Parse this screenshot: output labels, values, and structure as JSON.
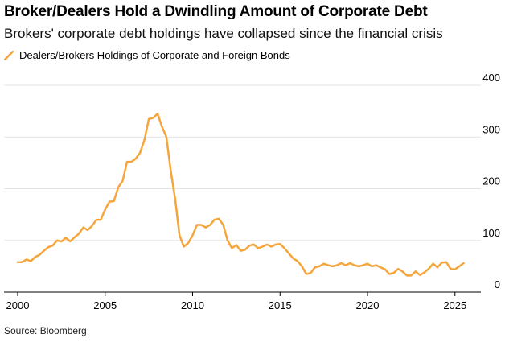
{
  "title": "Broker/Dealers Hold a Dwindling Amount of Corporate Debt",
  "subtitle": "Brokers' corporate debt holdings have collapsed since the financial crisis",
  "legend": {
    "label": "Dealers/Brokers Holdings of Corporate and Foreign Bonds"
  },
  "source": "Source: Bloomberg",
  "colors": {
    "series": "#f5a53b",
    "grid": "#e3e3e3",
    "axis": "#000000"
  },
  "chart_data": {
    "type": "line",
    "title": "Broker/Dealers Hold a Dwindling Amount of Corporate Debt",
    "xlabel": "",
    "ylabel": "",
    "xlim": [
      2000,
      2025.7
    ],
    "ylim": [
      0,
      400
    ],
    "x_ticks": [
      2000,
      2005,
      2010,
      2015,
      2020,
      2025
    ],
    "y_ticks": [
      0,
      100,
      200,
      300,
      400
    ],
    "x_tick_labels": [
      "2000",
      "2005",
      "2010",
      "2015",
      "2020",
      "2025"
    ],
    "y_tick_labels": [
      "0",
      "100",
      "200",
      "300",
      "400"
    ],
    "series": [
      {
        "name": "Dealers/Brokers Holdings of Corporate and Foreign Bonds",
        "x": [
          2000.0,
          2000.25,
          2000.5,
          2000.75,
          2001.0,
          2001.25,
          2001.5,
          2001.75,
          2002.0,
          2002.25,
          2002.5,
          2002.75,
          2003.0,
          2003.25,
          2003.5,
          2003.75,
          2004.0,
          2004.25,
          2004.5,
          2004.75,
          2005.0,
          2005.25,
          2005.5,
          2005.75,
          2006.0,
          2006.25,
          2006.5,
          2006.75,
          2007.0,
          2007.25,
          2007.5,
          2007.75,
          2008.0,
          2008.25,
          2008.5,
          2008.75,
          2009.0,
          2009.25,
          2009.5,
          2009.75,
          2010.0,
          2010.25,
          2010.5,
          2010.75,
          2011.0,
          2011.25,
          2011.5,
          2011.75,
          2012.0,
          2012.25,
          2012.5,
          2012.75,
          2013.0,
          2013.25,
          2013.5,
          2013.75,
          2014.0,
          2014.25,
          2014.5,
          2014.75,
          2015.0,
          2015.25,
          2015.5,
          2015.75,
          2016.0,
          2016.25,
          2016.5,
          2016.75,
          2017.0,
          2017.25,
          2017.5,
          2017.75,
          2018.0,
          2018.25,
          2018.5,
          2018.75,
          2019.0,
          2019.25,
          2019.5,
          2019.75,
          2020.0,
          2020.25,
          2020.5,
          2020.75,
          2021.0,
          2021.25,
          2021.5,
          2021.75,
          2022.0,
          2022.25,
          2022.5,
          2022.75,
          2023.0,
          2023.25,
          2023.5,
          2023.75,
          2024.0,
          2024.25,
          2024.5,
          2024.75,
          2025.0,
          2025.25,
          2025.5
        ],
        "values": [
          58,
          58,
          63,
          60,
          68,
          72,
          80,
          87,
          90,
          100,
          98,
          105,
          98,
          106,
          113,
          125,
          120,
          128,
          140,
          140,
          160,
          175,
          176,
          203,
          215,
          252,
          252,
          258,
          270,
          295,
          335,
          337,
          345,
          320,
          300,
          235,
          180,
          110,
          88,
          95,
          110,
          130,
          130,
          125,
          130,
          140,
          142,
          130,
          100,
          85,
          91,
          80,
          82,
          90,
          92,
          85,
          88,
          92,
          88,
          92,
          93,
          85,
          75,
          65,
          60,
          50,
          35,
          37,
          48,
          50,
          55,
          52,
          50,
          52,
          56,
          52,
          56,
          52,
          50,
          52,
          55,
          50,
          52,
          48,
          44,
          35,
          37,
          45,
          40,
          32,
          32,
          40,
          33,
          38,
          45,
          55,
          48,
          57,
          58,
          45,
          44,
          50,
          56
        ]
      }
    ]
  }
}
